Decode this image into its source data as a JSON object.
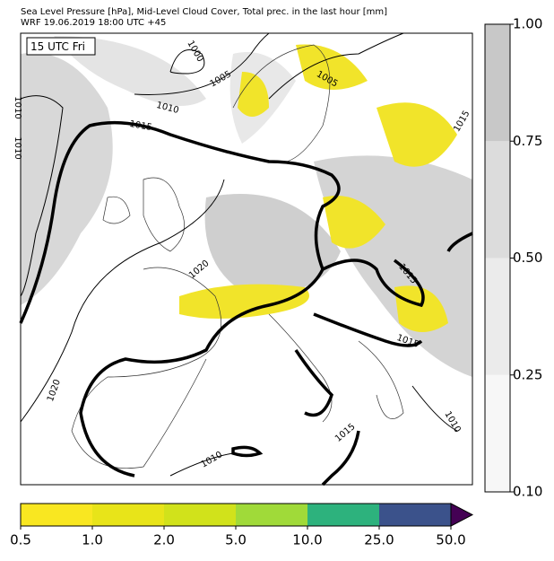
{
  "title_lines": [
    "Sea Level Pressure [hPa], Mid-Level Cloud Cover, Total prec. in the last hour [mm]",
    "WRF 19.06.2019 18:00 UTC +45"
  ],
  "time_label": "15 UTC Fri",
  "contour_labels": [
    "1000",
    "1005",
    "1010",
    "1015",
    "1005",
    "1015",
    "1010",
    "1010",
    "1020",
    "1020",
    "1015",
    "1015",
    "1015",
    "1010",
    "1010"
  ],
  "cloud_colorbar": {
    "ticks": [
      "0.10",
      "0.25",
      "0.50",
      "0.75",
      "1.00"
    ],
    "colors": [
      "#f7f7f7",
      "#ebebeb",
      "#dcdcdc",
      "#c8c8c8"
    ]
  },
  "precip_colorbar": {
    "ticks": [
      "0.5",
      "1.0",
      "2.0",
      "5.0",
      "10.0",
      "25.0",
      "50.0"
    ],
    "colors": [
      "#f9e721",
      "#e8e419",
      "#d1e21b",
      "#a0da39",
      "#2db27d",
      "#3b528b",
      "#440154"
    ]
  }
}
